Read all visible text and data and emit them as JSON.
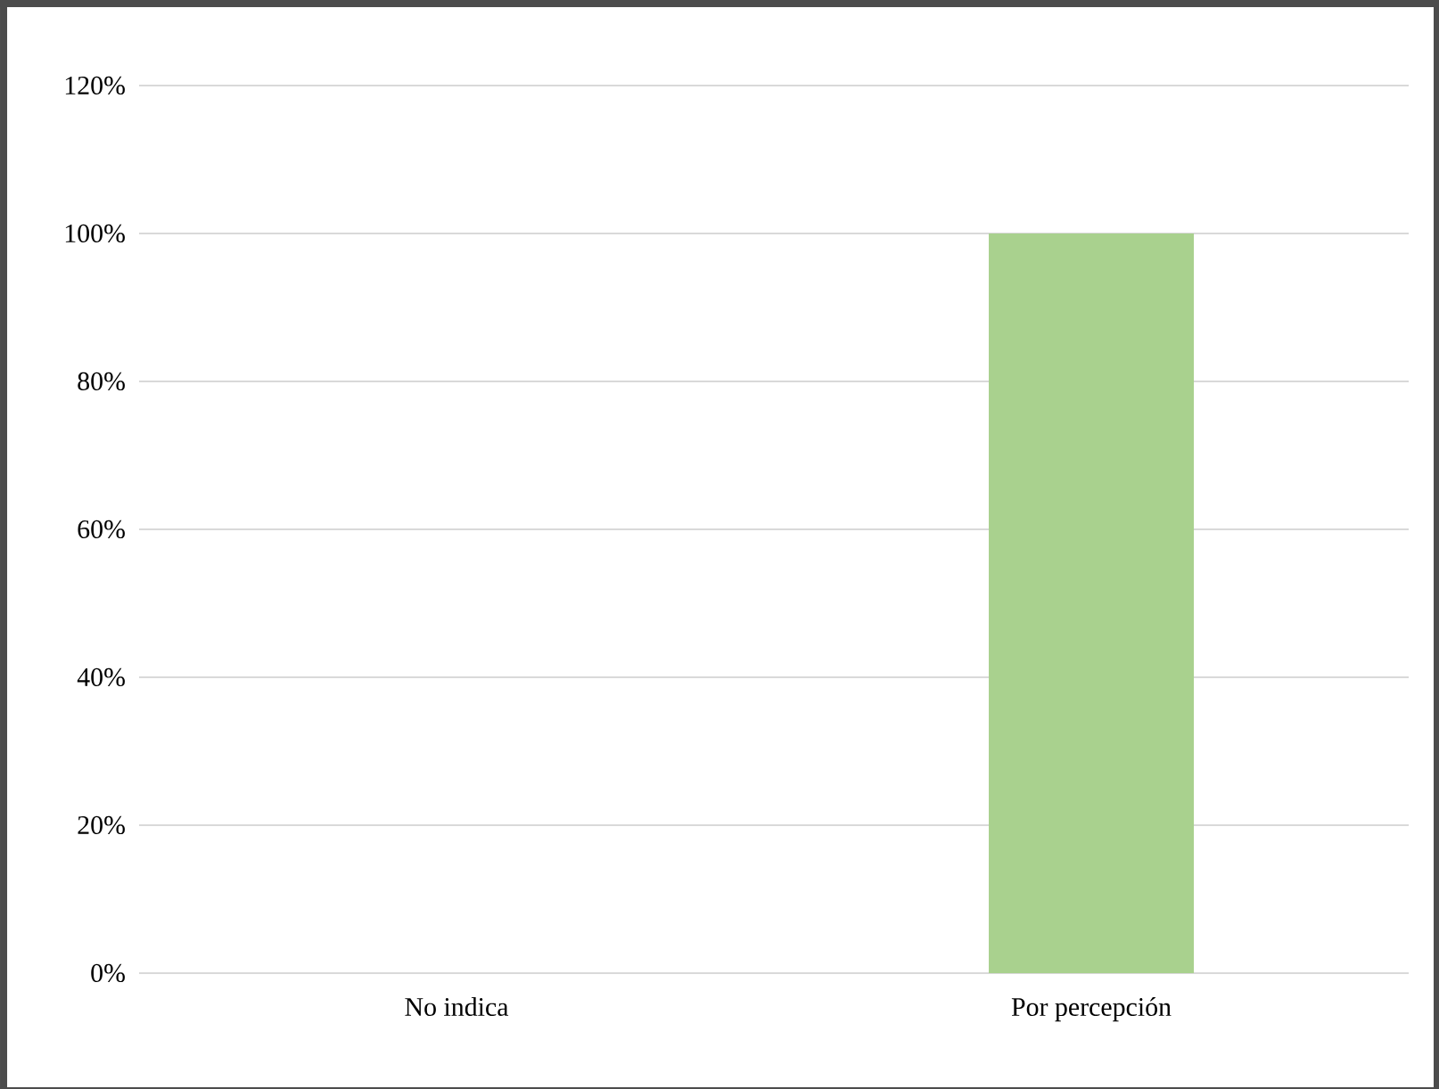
{
  "chart_data": {
    "type": "bar",
    "categories": [
      "No indica",
      "Por percepción"
    ],
    "values": [
      0,
      100
    ],
    "color": "#a9d18e",
    "ylim": [
      0,
      120
    ],
    "yticks": [
      {
        "value": 0,
        "label": "0%"
      },
      {
        "value": 20,
        "label": "20%"
      },
      {
        "value": 40,
        "label": "40%"
      },
      {
        "value": 60,
        "label": "60%"
      },
      {
        "value": 80,
        "label": "80%"
      },
      {
        "value": 100,
        "label": "100%"
      },
      {
        "value": 120,
        "label": "120%"
      }
    ],
    "grid": "y"
  }
}
